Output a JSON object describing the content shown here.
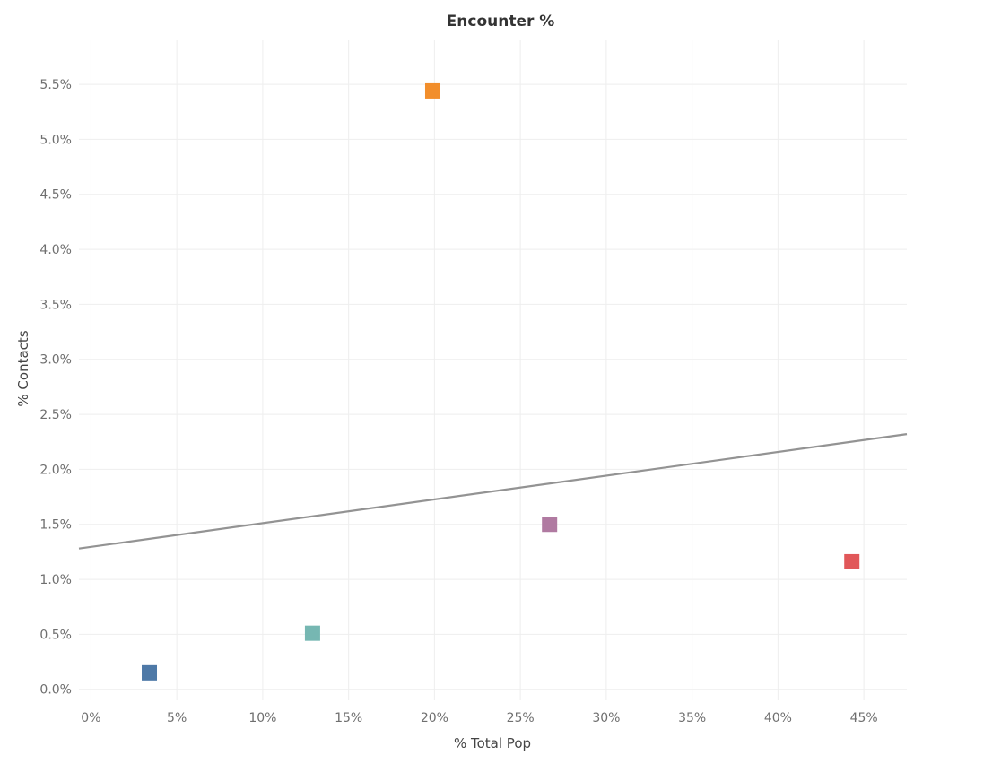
{
  "chart_data": {
    "type": "scatter",
    "title": "Encounter %",
    "xlabel": "% Total Pop",
    "ylabel": "% Contacts",
    "xlim": [
      -0.7,
      47.5
    ],
    "ylim": [
      -0.1,
      5.9
    ],
    "xticks": [
      0,
      5,
      10,
      15,
      20,
      25,
      30,
      35,
      40,
      45
    ],
    "xtick_labels": [
      "0%",
      "5%",
      "10%",
      "15%",
      "20%",
      "25%",
      "30%",
      "35%",
      "40%",
      "45%"
    ],
    "yticks": [
      0,
      0.5,
      1,
      1.5,
      2,
      2.5,
      3,
      3.5,
      4,
      4.5,
      5,
      5.5
    ],
    "ytick_labels": [
      "0.0%",
      "0.5%",
      "1.0%",
      "1.5%",
      "2.0%",
      "2.5%",
      "3.0%",
      "3.5%",
      "4.0%",
      "4.5%",
      "5.0%",
      "5.5%"
    ],
    "grid": true,
    "marker": "square",
    "points": [
      {
        "x": 3.4,
        "y": 0.15,
        "color": "#4e79a7"
      },
      {
        "x": 12.9,
        "y": 0.51,
        "color": "#76b7b2"
      },
      {
        "x": 19.9,
        "y": 5.44,
        "color": "#f28e2b"
      },
      {
        "x": 26.7,
        "y": 1.5,
        "color": "#b07aa1"
      },
      {
        "x": 44.3,
        "y": 1.16,
        "color": "#e15759"
      }
    ],
    "trend_line": {
      "x": [
        -0.7,
        47.5
      ],
      "y": [
        1.28,
        2.32
      ],
      "color": "#939393"
    }
  }
}
